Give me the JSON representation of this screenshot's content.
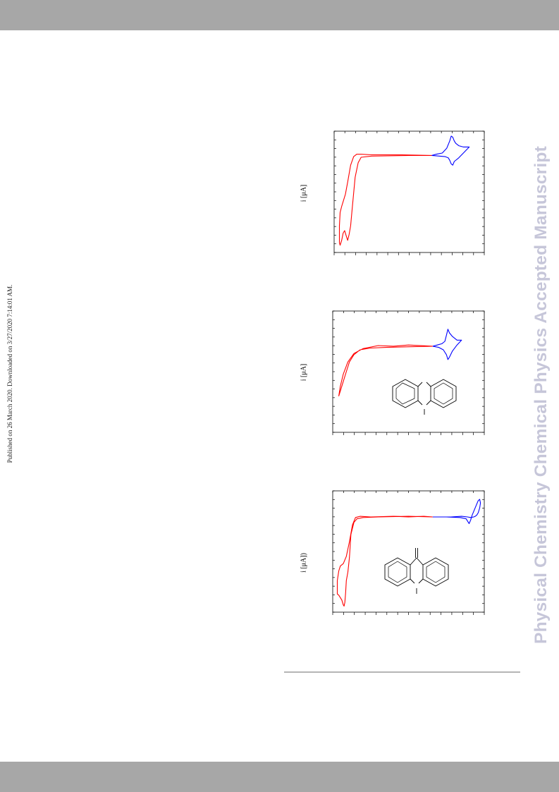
{
  "page": {
    "side_note": "Published on 26 March 2020. Downloaded on 3/27/2020 7:14:01 AM.",
    "watermark": "Physical Chemistry Chemical Physics Accepted Manuscript"
  },
  "chart_data": [
    {
      "type": "line",
      "ylabel": "i [μA]",
      "xlim": [
        0,
        1
      ],
      "ylim": [
        0,
        1
      ],
      "series": [
        {
          "color": "#ff0000",
          "x": [
            0.65,
            0.5,
            0.25,
            0.18,
            0.16,
            0.14,
            0.12,
            0.11,
            0.1,
            0.09,
            0.08,
            0.07,
            0.06,
            0.05,
            0.04,
            0.035,
            0.035,
            0.04,
            0.05,
            0.06,
            0.075,
            0.09,
            0.11,
            0.13,
            0.15,
            0.18,
            0.25,
            0.45,
            0.65
          ],
          "y": [
            0.8,
            0.8,
            0.795,
            0.785,
            0.74,
            0.62,
            0.36,
            0.22,
            0.15,
            0.1,
            0.14,
            0.18,
            0.16,
            0.1,
            0.06,
            0.08,
            0.22,
            0.33,
            0.38,
            0.42,
            0.48,
            0.58,
            0.72,
            0.79,
            0.81,
            0.81,
            0.805,
            0.805,
            0.8
          ]
        },
        {
          "color": "#0000ff",
          "x": [
            0.65,
            0.7,
            0.74,
            0.76,
            0.77,
            0.78,
            0.79,
            0.8,
            0.83,
            0.9,
            0.86,
            0.83,
            0.81,
            0.8,
            0.79,
            0.78,
            0.77,
            0.75,
            0.72,
            0.68,
            0.65
          ],
          "y": [
            0.8,
            0.795,
            0.79,
            0.78,
            0.76,
            0.73,
            0.72,
            0.75,
            0.78,
            0.87,
            0.87,
            0.88,
            0.9,
            0.92,
            0.95,
            0.96,
            0.92,
            0.86,
            0.82,
            0.81,
            0.8
          ]
        }
      ]
    },
    {
      "type": "line",
      "ylabel": "i [μA]",
      "xlim": [
        0,
        1
      ],
      "ylim": [
        0,
        1
      ],
      "series": [
        {
          "color": "#ff0000",
          "x": [
            0.66,
            0.5,
            0.35,
            0.25,
            0.18,
            0.14,
            0.11,
            0.09,
            0.07,
            0.05,
            0.04,
            0.05,
            0.07,
            0.1,
            0.14,
            0.2,
            0.3,
            0.4,
            0.5,
            0.66
          ],
          "y": [
            0.71,
            0.705,
            0.7,
            0.695,
            0.68,
            0.64,
            0.58,
            0.5,
            0.42,
            0.34,
            0.3,
            0.38,
            0.48,
            0.58,
            0.65,
            0.69,
            0.715,
            0.71,
            0.72,
            0.71
          ]
        },
        {
          "color": "#0000ff",
          "x": [
            0.66,
            0.7,
            0.73,
            0.75,
            0.76,
            0.77,
            0.79,
            0.82,
            0.85,
            0.82,
            0.79,
            0.77,
            0.76,
            0.75,
            0.74,
            0.72,
            0.69,
            0.66
          ],
          "y": [
            0.71,
            0.7,
            0.68,
            0.64,
            0.6,
            0.62,
            0.67,
            0.72,
            0.76,
            0.76,
            0.79,
            0.82,
            0.85,
            0.8,
            0.75,
            0.73,
            0.72,
            0.71
          ]
        }
      ]
    },
    {
      "type": "line",
      "ylabel": "i [μA])",
      "xlim": [
        0,
        1
      ],
      "ylim": [
        0,
        1
      ],
      "series": [
        {
          "color": "#ff0000",
          "x": [
            0.66,
            0.5,
            0.3,
            0.2,
            0.16,
            0.14,
            0.12,
            0.11,
            0.1,
            0.09,
            0.085,
            0.08,
            0.075,
            0.07,
            0.06,
            0.05,
            0.04,
            0.03,
            0.03,
            0.04,
            0.05,
            0.07,
            0.09,
            0.11,
            0.13,
            0.15,
            0.18,
            0.25,
            0.4,
            0.5,
            0.6,
            0.66
          ],
          "y": [
            0.785,
            0.79,
            0.785,
            0.78,
            0.77,
            0.74,
            0.64,
            0.45,
            0.33,
            0.26,
            0.16,
            0.08,
            0.05,
            0.06,
            0.1,
            0.12,
            0.14,
            0.15,
            0.26,
            0.34,
            0.38,
            0.4,
            0.46,
            0.58,
            0.72,
            0.78,
            0.79,
            0.785,
            0.79,
            0.785,
            0.79,
            0.785
          ]
        },
        {
          "color": "#0000ff",
          "x": [
            0.66,
            0.75,
            0.84,
            0.88,
            0.9,
            0.91,
            0.92,
            0.94,
            0.96,
            0.97,
            0.975,
            0.97,
            0.96,
            0.95,
            0.94,
            0.93,
            0.91,
            0.89,
            0.85,
            0.78,
            0.7,
            0.66
          ],
          "y": [
            0.785,
            0.785,
            0.78,
            0.77,
            0.73,
            0.76,
            0.8,
            0.86,
            0.92,
            0.93,
            0.9,
            0.86,
            0.82,
            0.8,
            0.79,
            0.785,
            0.78,
            0.785,
            0.79,
            0.785,
            0.785,
            0.785
          ]
        }
      ]
    }
  ],
  "structures": [
    {
      "name": "phenoxazine-like tricyclic (N-methyl)"
    },
    {
      "name": "acridone-like tricyclic (N-methyl, C=O)"
    }
  ]
}
